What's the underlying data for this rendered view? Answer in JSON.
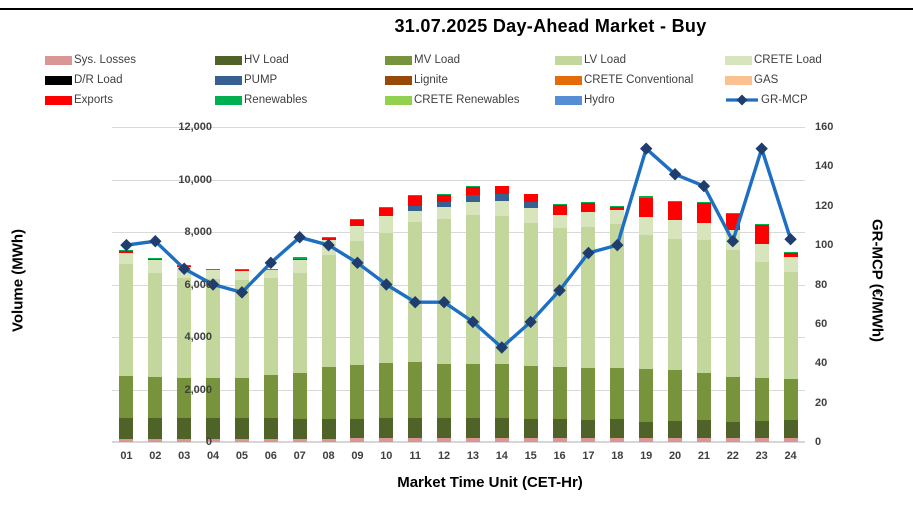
{
  "page": {
    "title": "31.07.2025  Day-Ahead Market - Buy"
  },
  "chart_data": {
    "type": "bar",
    "subtype": "stacked-bar-with-line-overlay",
    "title": "31.07.2025  Day-Ahead Market - Buy",
    "xlabel": "Market Time Unit (CET-Hr)",
    "ylabel_left": "Volume (MWh)",
    "ylabel_right": "GR-MCP (€/MWh)",
    "y_left_range": [
      0,
      12000
    ],
    "y_left_tick_step": 2000,
    "y_right_range": [
      0,
      160
    ],
    "y_right_tick_step": 20,
    "grid": "horizontal",
    "legend_position": "top",
    "categories": [
      "01",
      "02",
      "03",
      "04",
      "05",
      "06",
      "07",
      "08",
      "09",
      "10",
      "11",
      "12",
      "13",
      "14",
      "15",
      "16",
      "17",
      "18",
      "19",
      "20",
      "21",
      "22",
      "23",
      "24"
    ],
    "series": [
      {
        "name": "Sys. Losses",
        "color": "#d99694",
        "values": [
          130,
          130,
          130,
          130,
          130,
          130,
          130,
          130,
          140,
          140,
          140,
          140,
          140,
          140,
          140,
          140,
          140,
          140,
          135,
          135,
          135,
          135,
          135,
          135
        ]
      },
      {
        "name": "HV Load",
        "color": "#4f6228",
        "values": [
          800,
          800,
          790,
          800,
          790,
          790,
          730,
          760,
          730,
          760,
          760,
          760,
          760,
          760,
          740,
          730,
          700,
          730,
          630,
          665,
          695,
          630,
          665,
          695
        ]
      },
      {
        "name": "MV Load",
        "color": "#77933c",
        "values": [
          1570,
          1540,
          1510,
          1500,
          1530,
          1620,
          1770,
          1950,
          2080,
          2100,
          2150,
          2080,
          2080,
          2090,
          2020,
          2000,
          1980,
          1945,
          2025,
          1930,
          1810,
          1700,
          1640,
          1580
        ]
      },
      {
        "name": "LV Load",
        "color": "#c3d69b",
        "values": [
          4300,
          3985,
          3825,
          3770,
          3715,
          3690,
          3825,
          4300,
          4695,
          4960,
          5325,
          5520,
          5670,
          5610,
          5450,
          5280,
          5380,
          5485,
          5080,
          5010,
          5040,
          4865,
          4425,
          4080
        ]
      },
      {
        "name": "CRETE Load",
        "color": "#d7e4bc",
        "values": [
          400,
          470,
          430,
          335,
          340,
          315,
          470,
          570,
          595,
          635,
          435,
          450,
          500,
          600,
          550,
          500,
          550,
          550,
          710,
          710,
          680,
          735,
          685,
          540
        ]
      },
      {
        "name": "D/R Load",
        "color": "#000000",
        "values": [
          0,
          0,
          0,
          0,
          0,
          0,
          0,
          0,
          0,
          0,
          0,
          0,
          0,
          0,
          0,
          0,
          0,
          0,
          0,
          0,
          0,
          0,
          0,
          0
        ]
      },
      {
        "name": "PUMP",
        "color": "#376092",
        "values": [
          0,
          0,
          0,
          0,
          0,
          0,
          0,
          0,
          0,
          0,
          190,
          200,
          250,
          250,
          240,
          0,
          0,
          0,
          0,
          0,
          0,
          0,
          0,
          0
        ]
      },
      {
        "name": "Lignite",
        "color": "#984807",
        "values": [
          0,
          0,
          0,
          0,
          0,
          0,
          0,
          0,
          0,
          0,
          0,
          0,
          0,
          0,
          0,
          0,
          0,
          0,
          0,
          0,
          0,
          0,
          0,
          0
        ]
      },
      {
        "name": "CRETE Conventional",
        "color": "#e36c09",
        "values": [
          0,
          0,
          0,
          0,
          0,
          0,
          0,
          0,
          0,
          0,
          0,
          0,
          0,
          0,
          0,
          0,
          0,
          0,
          0,
          0,
          0,
          0,
          0,
          0
        ]
      },
      {
        "name": "GAS",
        "color": "#fac090",
        "values": [
          0,
          0,
          0,
          0,
          0,
          0,
          0,
          0,
          0,
          0,
          0,
          0,
          0,
          0,
          0,
          0,
          0,
          0,
          0,
          0,
          0,
          0,
          0,
          0
        ]
      },
      {
        "name": "Exports",
        "color": "#ff0000",
        "values": [
          60,
          35,
          25,
          25,
          30,
          0,
          65,
          50,
          230,
          315,
          375,
          260,
          300,
          300,
          310,
          370,
          350,
          100,
          710,
          710,
          760,
          620,
          735,
          155
        ]
      },
      {
        "name": "Renewables",
        "color": "#00b050",
        "values": [
          55,
          50,
          50,
          50,
          35,
          65,
          50,
          50,
          40,
          40,
          40,
          40,
          30,
          0,
          0,
          30,
          25,
          25,
          65,
          40,
          40,
          35,
          35,
          40
        ]
      },
      {
        "name": "CRETE Renewables",
        "color": "#92d050",
        "values": [
          0,
          0,
          0,
          0,
          0,
          0,
          0,
          0,
          0,
          0,
          0,
          0,
          0,
          0,
          0,
          0,
          0,
          0,
          0,
          0,
          0,
          0,
          0,
          0
        ]
      },
      {
        "name": "Hydro",
        "color": "#558ed5",
        "values": [
          0,
          0,
          0,
          0,
          0,
          0,
          0,
          0,
          0,
          0,
          0,
          0,
          0,
          0,
          0,
          0,
          0,
          0,
          0,
          0,
          0,
          0,
          0,
          0
        ]
      }
    ],
    "line_series": {
      "name": "GR-MCP",
      "axis": "right",
      "line_color": "#1d6fc1",
      "marker_color": "#1f3d6d",
      "marker": "diamond",
      "values": [
        100,
        102,
        88,
        80,
        76,
        91,
        104,
        100,
        91,
        80,
        71,
        71,
        61,
        48,
        61,
        77,
        96,
        100,
        149,
        136,
        130,
        102,
        149,
        103
      ]
    },
    "legend_rows": [
      [
        "Sys. Losses",
        "HV Load",
        "MV Load",
        "LV Load",
        "CRETE Load"
      ],
      [
        "D/R Load",
        "PUMP",
        "Lignite",
        "CRETE Conventional",
        "GAS"
      ],
      [
        "Exports",
        "Renewables",
        "CRETE Renewables",
        "Hydro",
        "GR-MCP"
      ]
    ]
  }
}
